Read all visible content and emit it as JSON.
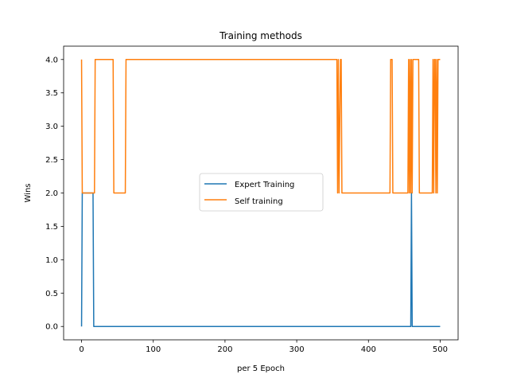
{
  "chart_data": {
    "type": "line",
    "title": "Training methods",
    "xlabel": "per 5 Epoch",
    "ylabel": "Wins",
    "xlim": [
      -25,
      525
    ],
    "ylim": [
      -0.2,
      4.2
    ],
    "xticks": [
      "0",
      "100",
      "200",
      "300",
      "400",
      "500"
    ],
    "yticks": [
      "0.0",
      "0.5",
      "1.0",
      "1.5",
      "2.0",
      "2.5",
      "3.0",
      "3.5",
      "4.0"
    ],
    "grid": false,
    "legend_position": "center-right",
    "series": [
      {
        "name": "Expert Training",
        "color": "#1f77b4",
        "x": [
          0,
          1,
          16,
          17,
          458,
          459,
          460,
          461,
          500
        ],
        "y": [
          0,
          2,
          2,
          0,
          0,
          0,
          2,
          0,
          0
        ]
      },
      {
        "name": "Self training",
        "color": "#ff7f0e",
        "x": [
          0,
          1,
          18,
          19,
          44,
          45,
          61,
          62,
          356,
          357,
          358,
          359,
          361,
          362,
          363,
          364,
          430,
          431,
          433,
          434,
          455,
          456,
          457,
          458,
          459,
          460,
          461,
          462,
          470,
          471,
          489,
          490,
          491,
          492,
          493,
          494,
          495,
          496,
          497,
          498,
          500
        ],
        "y": [
          4,
          2,
          2,
          4,
          4,
          2,
          2,
          4,
          4,
          2,
          4,
          2,
          4,
          4,
          2,
          2,
          2,
          4,
          4,
          2,
          2,
          4,
          2,
          4,
          2,
          4,
          2,
          4,
          4,
          2,
          2,
          4,
          2,
          4,
          4,
          2,
          4,
          2,
          4,
          4,
          4
        ]
      }
    ]
  }
}
